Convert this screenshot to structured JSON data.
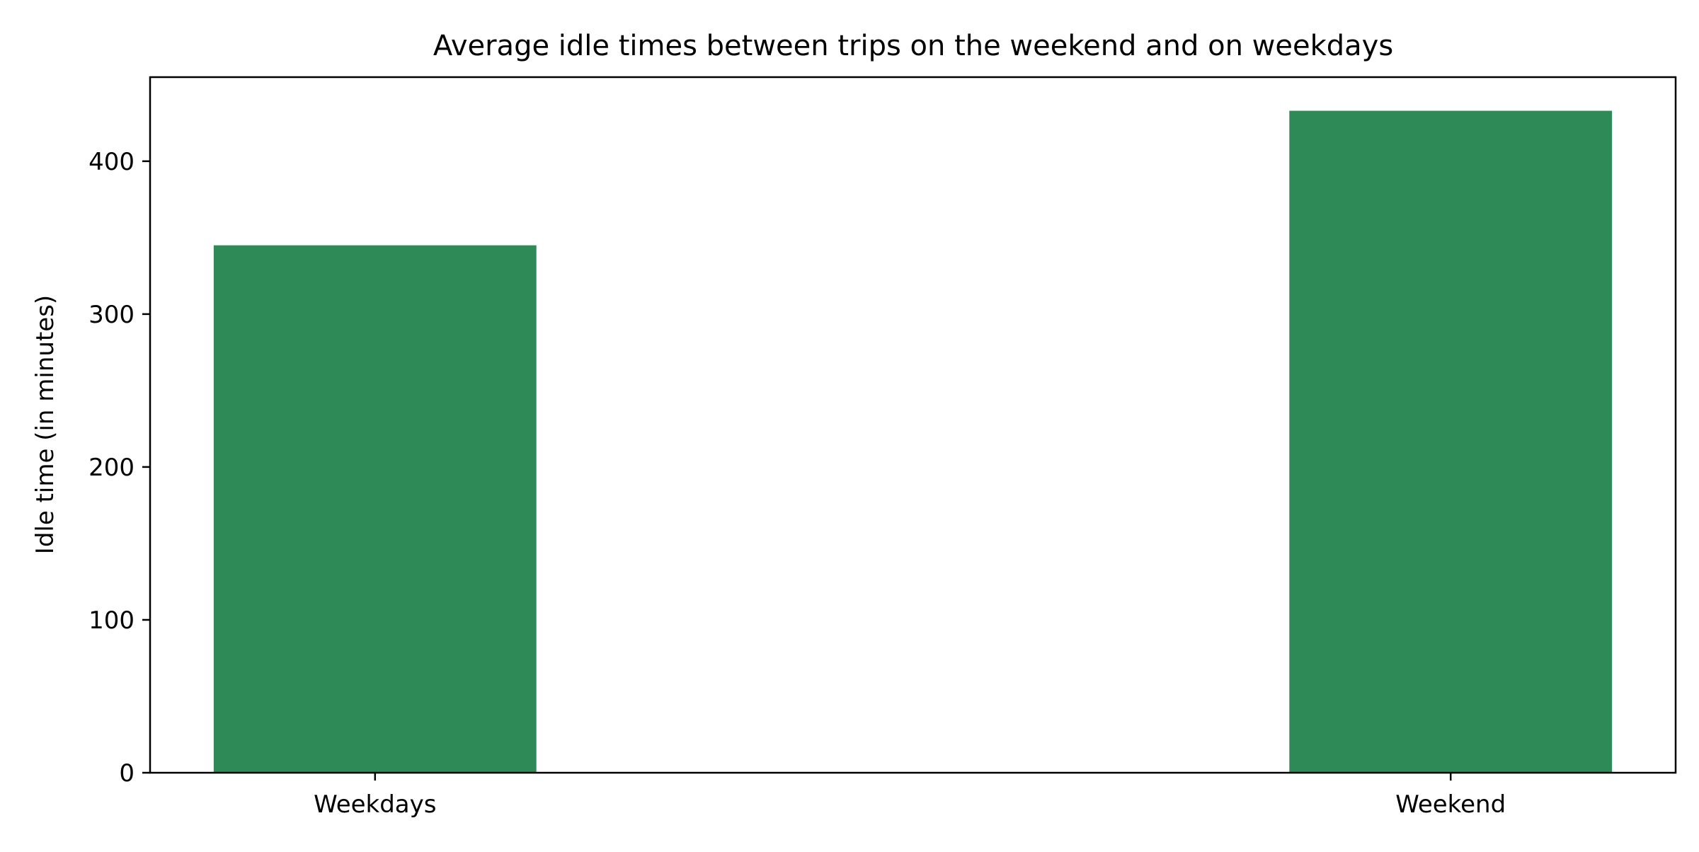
{
  "chart_data": {
    "type": "bar",
    "title": "Average idle times between trips on the weekend and on weekdays",
    "xlabel": "",
    "ylabel": "Idle time (in minutes)",
    "categories": [
      "Weekdays",
      "Weekend"
    ],
    "values": [
      345,
      433
    ],
    "ylim": [
      0,
      455
    ],
    "yticks": [
      0,
      100,
      200,
      300,
      400
    ],
    "bar_color": "#2e8b57",
    "grid": false,
    "legend": "none"
  }
}
